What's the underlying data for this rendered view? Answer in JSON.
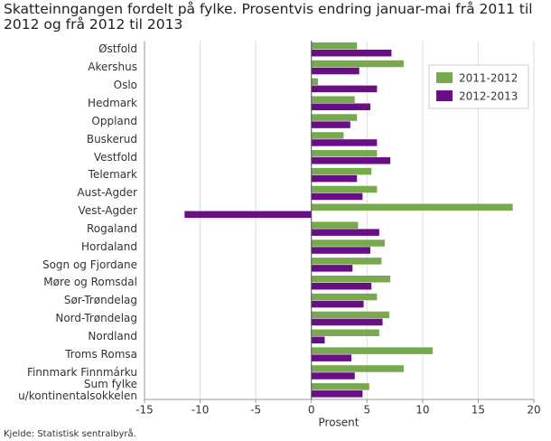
{
  "chart_data": {
    "type": "hbar",
    "title": "Skatteinngangen fordelt på fylke. Prosentvis endring januar-mai frå 2011 til 2012 og frå 2012 til 2013",
    "xlabel": "Prosent",
    "source": "Kjelde: Statistisk sentralbyrå.",
    "categories": [
      "Østfold",
      "Akershus",
      "Oslo",
      "Hedmark",
      "Oppland",
      "Buskerud",
      "Vestfold",
      "Telemark",
      "Aust-Agder",
      "Vest-Agder",
      "Rogaland",
      "Hordaland",
      "Sogn og Fjordane",
      "Møre og Romsdal",
      "Sør-Trøndelag",
      "Nord-Trøndelag",
      "Nordland",
      "Troms Romsa",
      "Finnmark Finnmárku",
      "Sum fylke u/kontinentalsokkelen"
    ],
    "series": [
      {
        "name": "2011-2012",
        "color": "#78a94e",
        "values": [
          4.1,
          8.3,
          0.6,
          3.9,
          4.1,
          2.9,
          5.9,
          5.4,
          5.9,
          18.1,
          4.2,
          6.6,
          6.3,
          7.1,
          5.9,
          7.0,
          6.1,
          10.9,
          8.3,
          5.2
        ]
      },
      {
        "name": "2012-2013",
        "color": "#690e86",
        "values": [
          7.2,
          4.3,
          5.9,
          5.3,
          3.5,
          5.9,
          7.1,
          4.1,
          4.6,
          -11.4,
          6.1,
          5.3,
          3.7,
          5.4,
          4.7,
          6.4,
          1.2,
          3.6,
          3.9,
          4.6
        ]
      }
    ],
    "xlim": [
      -15,
      20
    ],
    "xticks": [
      -15,
      -10,
      -5,
      0,
      5,
      10,
      15,
      20
    ],
    "grid": true,
    "legend": "upper right"
  }
}
